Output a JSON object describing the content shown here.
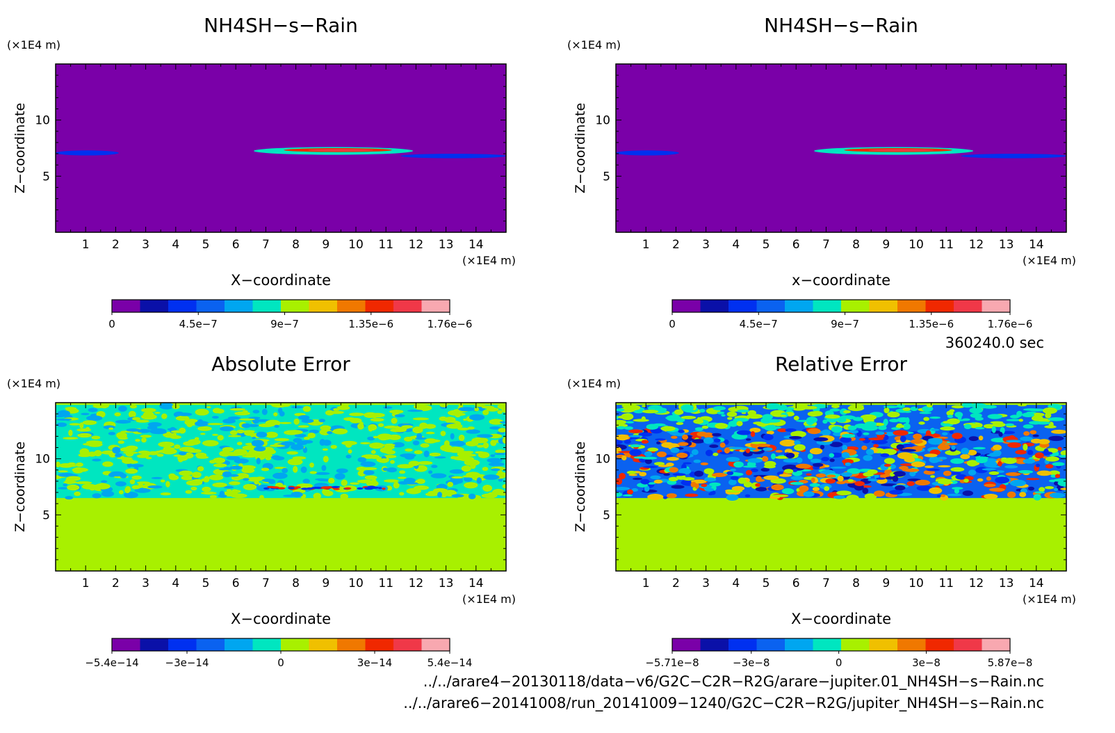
{
  "chart_data": [
    {
      "type": "heatmap",
      "title": "NH4SH−s−Rain",
      "xlabel": "X−coordinate",
      "ylabel": "Z−coordinate",
      "x_unit": "(×1E4 m)",
      "y_unit": "(×1E4 m)",
      "xlim": [
        0,
        15
      ],
      "ylim": [
        0,
        15
      ],
      "xticks": [
        1,
        2,
        3,
        4,
        5,
        6,
        7,
        8,
        9,
        10,
        11,
        12,
        13,
        14
      ],
      "yticks": [
        5,
        10
      ],
      "background": "#7a00a8",
      "colorbar": {
        "colors": [
          "#7a00a8",
          "#0a10a8",
          "#0030f0",
          "#0a62f0",
          "#00a6f0",
          "#00e6c0",
          "#a8f000",
          "#f0c000",
          "#f07800",
          "#f02800",
          "#f03848",
          "#f8a8b0"
        ],
        "tick_labels": [
          "0",
          "4.5e−7",
          "9e−7",
          "1.35e−6",
          "1.76e−6"
        ],
        "tick_values": [
          0,
          4.5e-07,
          9e-07,
          1.35e-06,
          1.76e-06
        ],
        "range": [
          0,
          1.76e-06
        ]
      },
      "features": [
        {
          "kind": "band",
          "x": [
            0.0,
            2.1
          ],
          "z": [
            6.85,
            7.3
          ],
          "value": 3e-07
        },
        {
          "kind": "band",
          "x": [
            6.6,
            11.9
          ],
          "z": [
            6.9,
            7.6
          ],
          "value": 8e-07
        },
        {
          "kind": "band",
          "x": [
            7.6,
            11.2
          ],
          "z": [
            7.15,
            7.5
          ],
          "value": 1.35e-06
        },
        {
          "kind": "band",
          "x": [
            8.4,
            10.6
          ],
          "z": [
            7.22,
            7.42
          ],
          "value": 1.6e-06
        },
        {
          "kind": "band",
          "x": [
            11.5,
            15.0
          ],
          "z": [
            6.6,
            7.0
          ],
          "value": 3e-07
        }
      ]
    },
    {
      "type": "heatmap",
      "title": "NH4SH−s−Rain",
      "xlabel": "x−coordinate",
      "ylabel": "Z−coordinate",
      "x_unit": "(×1E4 m)",
      "y_unit": "(×1E4 m)",
      "xlim": [
        0,
        15
      ],
      "ylim": [
        0,
        15
      ],
      "xticks": [
        1,
        2,
        3,
        4,
        5,
        6,
        7,
        8,
        9,
        10,
        11,
        12,
        13,
        14
      ],
      "yticks": [
        5,
        10
      ],
      "background": "#7a00a8",
      "colorbar": {
        "colors": [
          "#7a00a8",
          "#0a10a8",
          "#0030f0",
          "#0a62f0",
          "#00a6f0",
          "#00e6c0",
          "#a8f000",
          "#f0c000",
          "#f07800",
          "#f02800",
          "#f03848",
          "#f8a8b0"
        ],
        "tick_labels": [
          "0",
          "4.5e−7",
          "9e−7",
          "1.35e−6",
          "1.76e−6"
        ],
        "tick_values": [
          0,
          4.5e-07,
          9e-07,
          1.35e-06,
          1.76e-06
        ],
        "range": [
          0,
          1.76e-06
        ]
      },
      "features": [
        {
          "kind": "band",
          "x": [
            0.0,
            2.1
          ],
          "z": [
            6.85,
            7.3
          ],
          "value": 3e-07
        },
        {
          "kind": "band",
          "x": [
            6.6,
            11.9
          ],
          "z": [
            6.9,
            7.6
          ],
          "value": 8e-07
        },
        {
          "kind": "band",
          "x": [
            7.6,
            11.2
          ],
          "z": [
            7.15,
            7.5
          ],
          "value": 1.35e-06
        },
        {
          "kind": "band",
          "x": [
            8.4,
            10.6
          ],
          "z": [
            7.22,
            7.42
          ],
          "value": 1.6e-06
        },
        {
          "kind": "band",
          "x": [
            11.5,
            15.0
          ],
          "z": [
            6.6,
            7.0
          ],
          "value": 3e-07
        }
      ]
    },
    {
      "type": "heatmap",
      "title": "Absolute Error",
      "xlabel": "X−coordinate",
      "ylabel": "Z−coordinate",
      "x_unit": "(×1E4 m)",
      "y_unit": "(×1E4 m)",
      "xlim": [
        0,
        15
      ],
      "ylim": [
        0,
        15
      ],
      "xticks": [
        1,
        2,
        3,
        4,
        5,
        6,
        7,
        8,
        9,
        10,
        11,
        12,
        13,
        14
      ],
      "yticks": [
        5,
        10
      ],
      "background": "#a8f000",
      "colorbar": {
        "colors": [
          "#7a00a8",
          "#0a10a8",
          "#0030f0",
          "#0a62f0",
          "#00a6f0",
          "#00e6c0",
          "#a8f000",
          "#f0c000",
          "#f07800",
          "#f02800",
          "#f03848",
          "#f8a8b0"
        ],
        "tick_labels": [
          "−5.4e−14",
          "−3e−14",
          "0",
          "3e−14",
          "5.4e−14"
        ],
        "tick_values": [
          -5.4e-14,
          -3e-14,
          0,
          3e-14,
          5.4e-14
        ],
        "range": [
          -5.4e-14,
          5.4e-14
        ]
      },
      "noise_region": {
        "z": [
          6.5,
          14.8
        ],
        "dominant": "#00e6c0",
        "secondary": "#a8f000"
      },
      "features": [
        {
          "kind": "streak",
          "x": [
            7.0,
            11.0
          ],
          "z": [
            7.3,
            7.5
          ],
          "values": [
            3e-14,
            -3e-14
          ]
        }
      ]
    },
    {
      "type": "heatmap",
      "title": "Relative Error",
      "xlabel": "X−coordinate",
      "ylabel": "Z−coordinate",
      "x_unit": "(×1E4 m)",
      "y_unit": "(×1E4 m)",
      "xlim": [
        0,
        15
      ],
      "ylim": [
        0,
        15
      ],
      "xticks": [
        1,
        2,
        3,
        4,
        5,
        6,
        7,
        8,
        9,
        10,
        11,
        12,
        13,
        14
      ],
      "yticks": [
        5,
        10
      ],
      "background": "#a8f000",
      "colorbar": {
        "colors": [
          "#7a00a8",
          "#0a10a8",
          "#0030f0",
          "#0a62f0",
          "#00a6f0",
          "#00e6c0",
          "#a8f000",
          "#f0c000",
          "#f07800",
          "#f02800",
          "#f03848",
          "#f8a8b0"
        ],
        "tick_labels": [
          "−5.71e−8",
          "−3e−8",
          "0",
          "3e−8",
          "5.87e−8"
        ],
        "tick_values": [
          -5.71e-08,
          -3e-08,
          0,
          3e-08,
          5.87e-08
        ],
        "range": [
          -5.71e-08,
          5.87e-08
        ]
      },
      "noise_region": {
        "z": [
          6.5,
          14.8
        ],
        "dominant": "#0a62f0",
        "secondary": "#f07800"
      },
      "features": []
    }
  ],
  "time_label": "360240.0 sec",
  "file_paths": [
    "../../arare4−20130118/data−v6/G2C−C2R−R2G/arare−jupiter.01_NH4SH−s−Rain.nc",
    "../../arare6−20141008/run_20141009−1240/G2C−C2R−R2G/jupiter_NH4SH−s−Rain.nc"
  ]
}
